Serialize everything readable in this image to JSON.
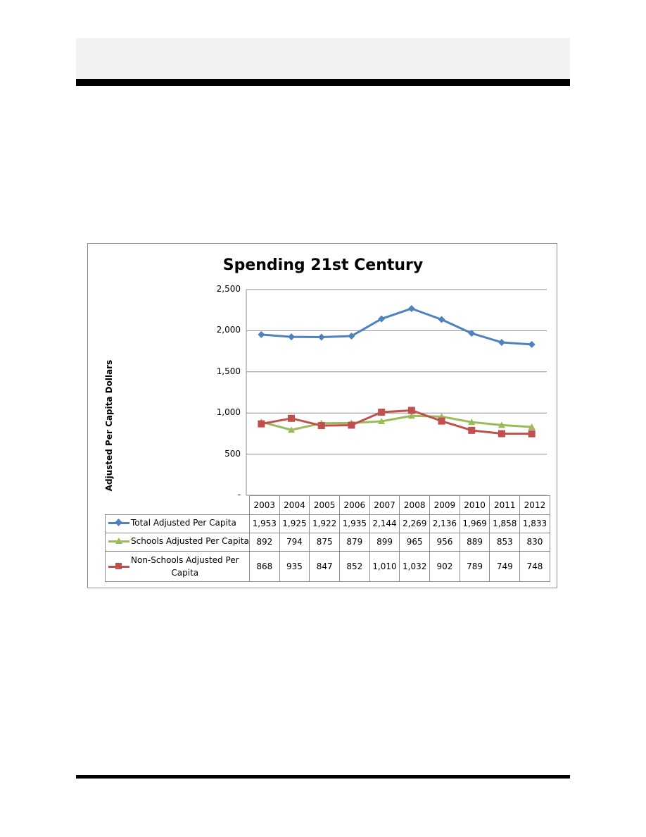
{
  "chart_data": {
    "type": "line",
    "title": "Spending 21st Century",
    "ylabel": "Adjusted Per Capita Dollars",
    "xlabel": "",
    "categories": [
      "2003",
      "2004",
      "2005",
      "2006",
      "2007",
      "2008",
      "2009",
      "2010",
      "2011",
      "2012"
    ],
    "ylim": [
      0,
      2500
    ],
    "yticks": [
      {
        "value": 2500,
        "label": "2,500"
      },
      {
        "value": 2000,
        "label": "2,000"
      },
      {
        "value": 1500,
        "label": "1,500"
      },
      {
        "value": 1000,
        "label": "1,000"
      },
      {
        "value": 500,
        "label": "500"
      },
      {
        "value": 0,
        "label": "-"
      }
    ],
    "grid": true,
    "legend": "data-table",
    "series": [
      {
        "name": "Total Adjusted Per Capita",
        "color": "#4f81bd",
        "marker": "diamond",
        "values": [
          1953,
          1925,
          1922,
          1935,
          2144,
          2269,
          2136,
          1969,
          1858,
          1833
        ],
        "labels": [
          "1,953",
          "1,925",
          "1,922",
          "1,935",
          "2,144",
          "2,269",
          "2,136",
          "1,969",
          "1,858",
          "1,833"
        ]
      },
      {
        "name": "Schools Adjusted Per Capita",
        "color": "#9bbb59",
        "marker": "triangle",
        "values": [
          892,
          794,
          875,
          879,
          899,
          965,
          956,
          889,
          853,
          830
        ],
        "labels": [
          "892",
          "794",
          "875",
          "879",
          "899",
          "965",
          "956",
          "889",
          "853",
          "830"
        ]
      },
      {
        "name": "Non-Schools Adjusted Per Capita",
        "display_name_lines": [
          "Non-Schools Adjusted Per",
          "Capita"
        ],
        "color": "#c0504d",
        "marker": "square",
        "values": [
          868,
          935,
          847,
          852,
          1010,
          1032,
          902,
          789,
          749,
          748
        ],
        "labels": [
          "868",
          "935",
          "847",
          "852",
          "1,010",
          "1,032",
          "902",
          "789",
          "749",
          "748"
        ]
      }
    ]
  }
}
